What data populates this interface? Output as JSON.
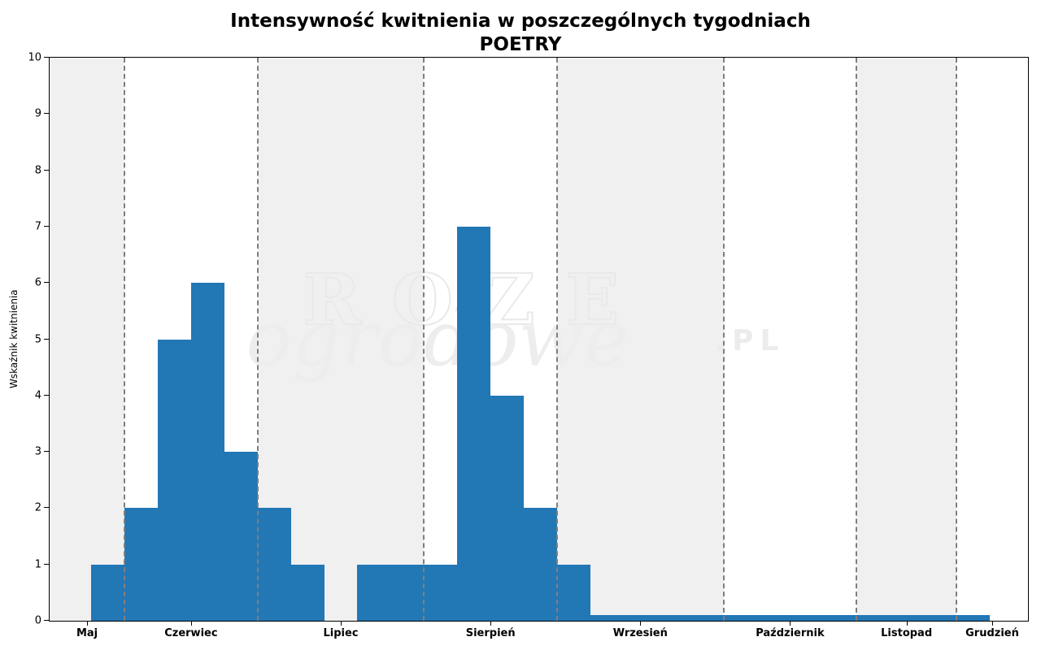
{
  "watermark": {
    "roze": "ROZE",
    "ogrodowe": "ogrodowe",
    "pl": ".PL"
  },
  "chart_data": {
    "type": "bar",
    "title": "Intensywność kwitnienia w poszczególnych tygodniach",
    "subtitle": "POETRY",
    "xlabel": "",
    "ylabel": "Wskaźnik kwitnienia",
    "ylim": [
      0,
      10
    ],
    "yticks": [
      0,
      1,
      2,
      3,
      4,
      5,
      6,
      7,
      8,
      9,
      10
    ],
    "x_range": [
      0,
      29.4
    ],
    "x_unit": "weeks",
    "bar_color": "#2277b5",
    "band_color": "#f0f0f0",
    "divider_style": "dashed gray vertical lines at month boundaries",
    "legend": null,
    "months": [
      {
        "label": "Maj",
        "start": 0,
        "end": 2.25,
        "shaded": true
      },
      {
        "label": "Czerwiec",
        "start": 2.25,
        "end": 6.25,
        "shaded": false
      },
      {
        "label": "Lipiec",
        "start": 6.25,
        "end": 11.25,
        "shaded": true
      },
      {
        "label": "Sierpień",
        "start": 11.25,
        "end": 15.25,
        "shaded": false
      },
      {
        "label": "Wrzesień",
        "start": 15.25,
        "end": 20.25,
        "shaded": true
      },
      {
        "label": "Październik",
        "start": 20.25,
        "end": 24.25,
        "shaded": false
      },
      {
        "label": "Listopad",
        "start": 24.25,
        "end": 27.25,
        "shaded": true
      },
      {
        "label": "Grudzień",
        "start": 27.25,
        "end": 29.4,
        "shaded": false
      }
    ],
    "bars": [
      {
        "x0": 1.25,
        "x1": 2.25,
        "value": 1
      },
      {
        "x0": 2.25,
        "x1": 3.25,
        "value": 2
      },
      {
        "x0": 3.25,
        "x1": 4.25,
        "value": 5
      },
      {
        "x0": 4.25,
        "x1": 5.25,
        "value": 6
      },
      {
        "x0": 5.25,
        "x1": 6.25,
        "value": 3
      },
      {
        "x0": 6.25,
        "x1": 7.25,
        "value": 2
      },
      {
        "x0": 7.25,
        "x1": 8.25,
        "value": 1
      },
      {
        "x0": 9.25,
        "x1": 12.25,
        "value": 1
      },
      {
        "x0": 12.25,
        "x1": 13.25,
        "value": 7
      },
      {
        "x0": 13.25,
        "x1": 14.25,
        "value": 4
      },
      {
        "x0": 14.25,
        "x1": 15.25,
        "value": 2
      },
      {
        "x0": 15.25,
        "x1": 16.25,
        "value": 1
      },
      {
        "x0": 16.25,
        "x1": 28.25,
        "value": 0.1
      }
    ]
  }
}
